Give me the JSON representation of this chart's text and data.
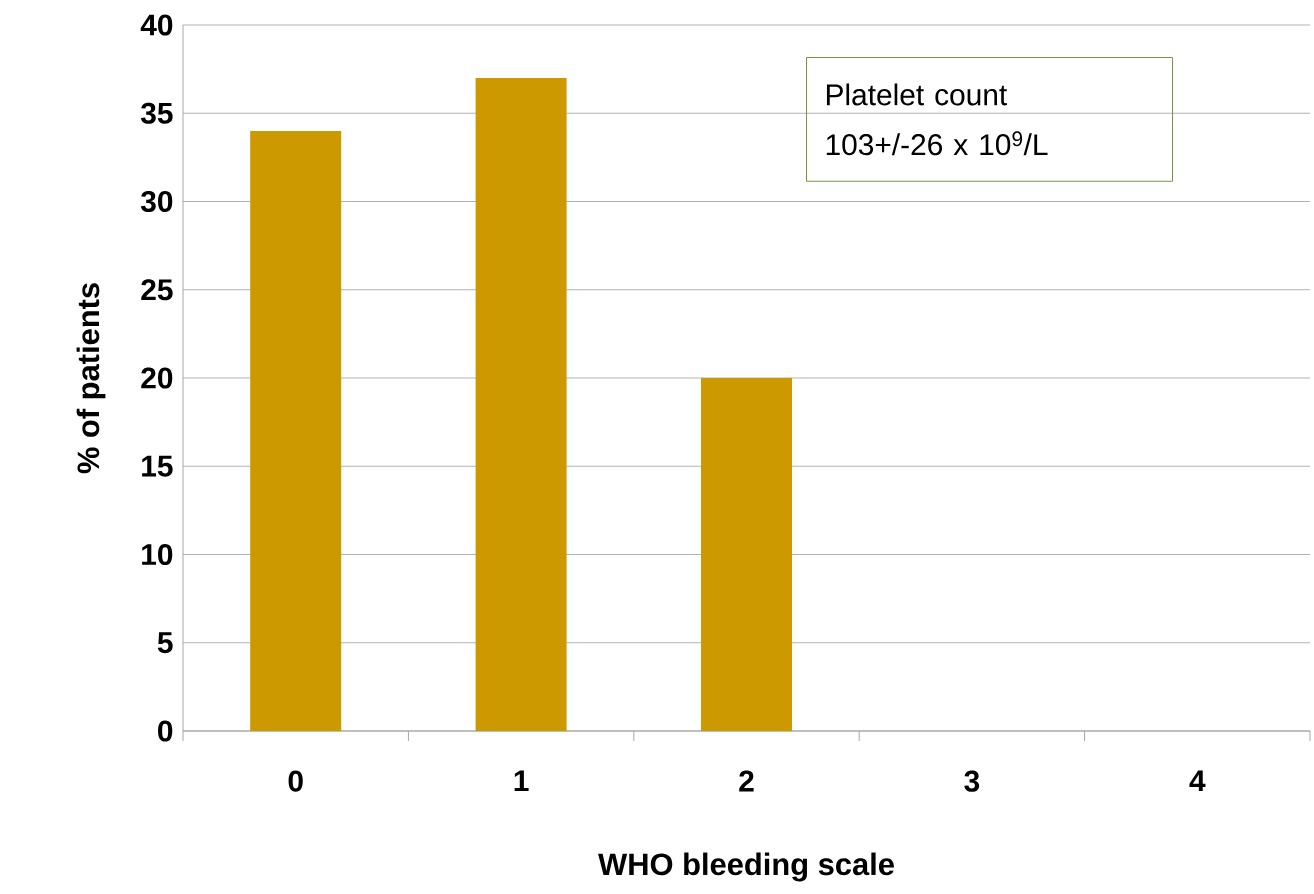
{
  "chart_data": {
    "type": "bar",
    "xlabel": "WHO bleeding scale",
    "ylabel": "% of patients",
    "categories": [
      "0",
      "1",
      "2",
      "3",
      "4"
    ],
    "values": [
      34,
      37,
      20,
      0,
      0
    ],
    "color": "#cc9900",
    "ylim": [
      0,
      40
    ],
    "yticks": [
      0,
      5,
      10,
      15,
      20,
      25,
      30,
      35,
      40
    ],
    "grid": "y",
    "annotations": [
      "Platelet count\n103+/-26 x 10$^{9}$/L"
    ]
  }
}
